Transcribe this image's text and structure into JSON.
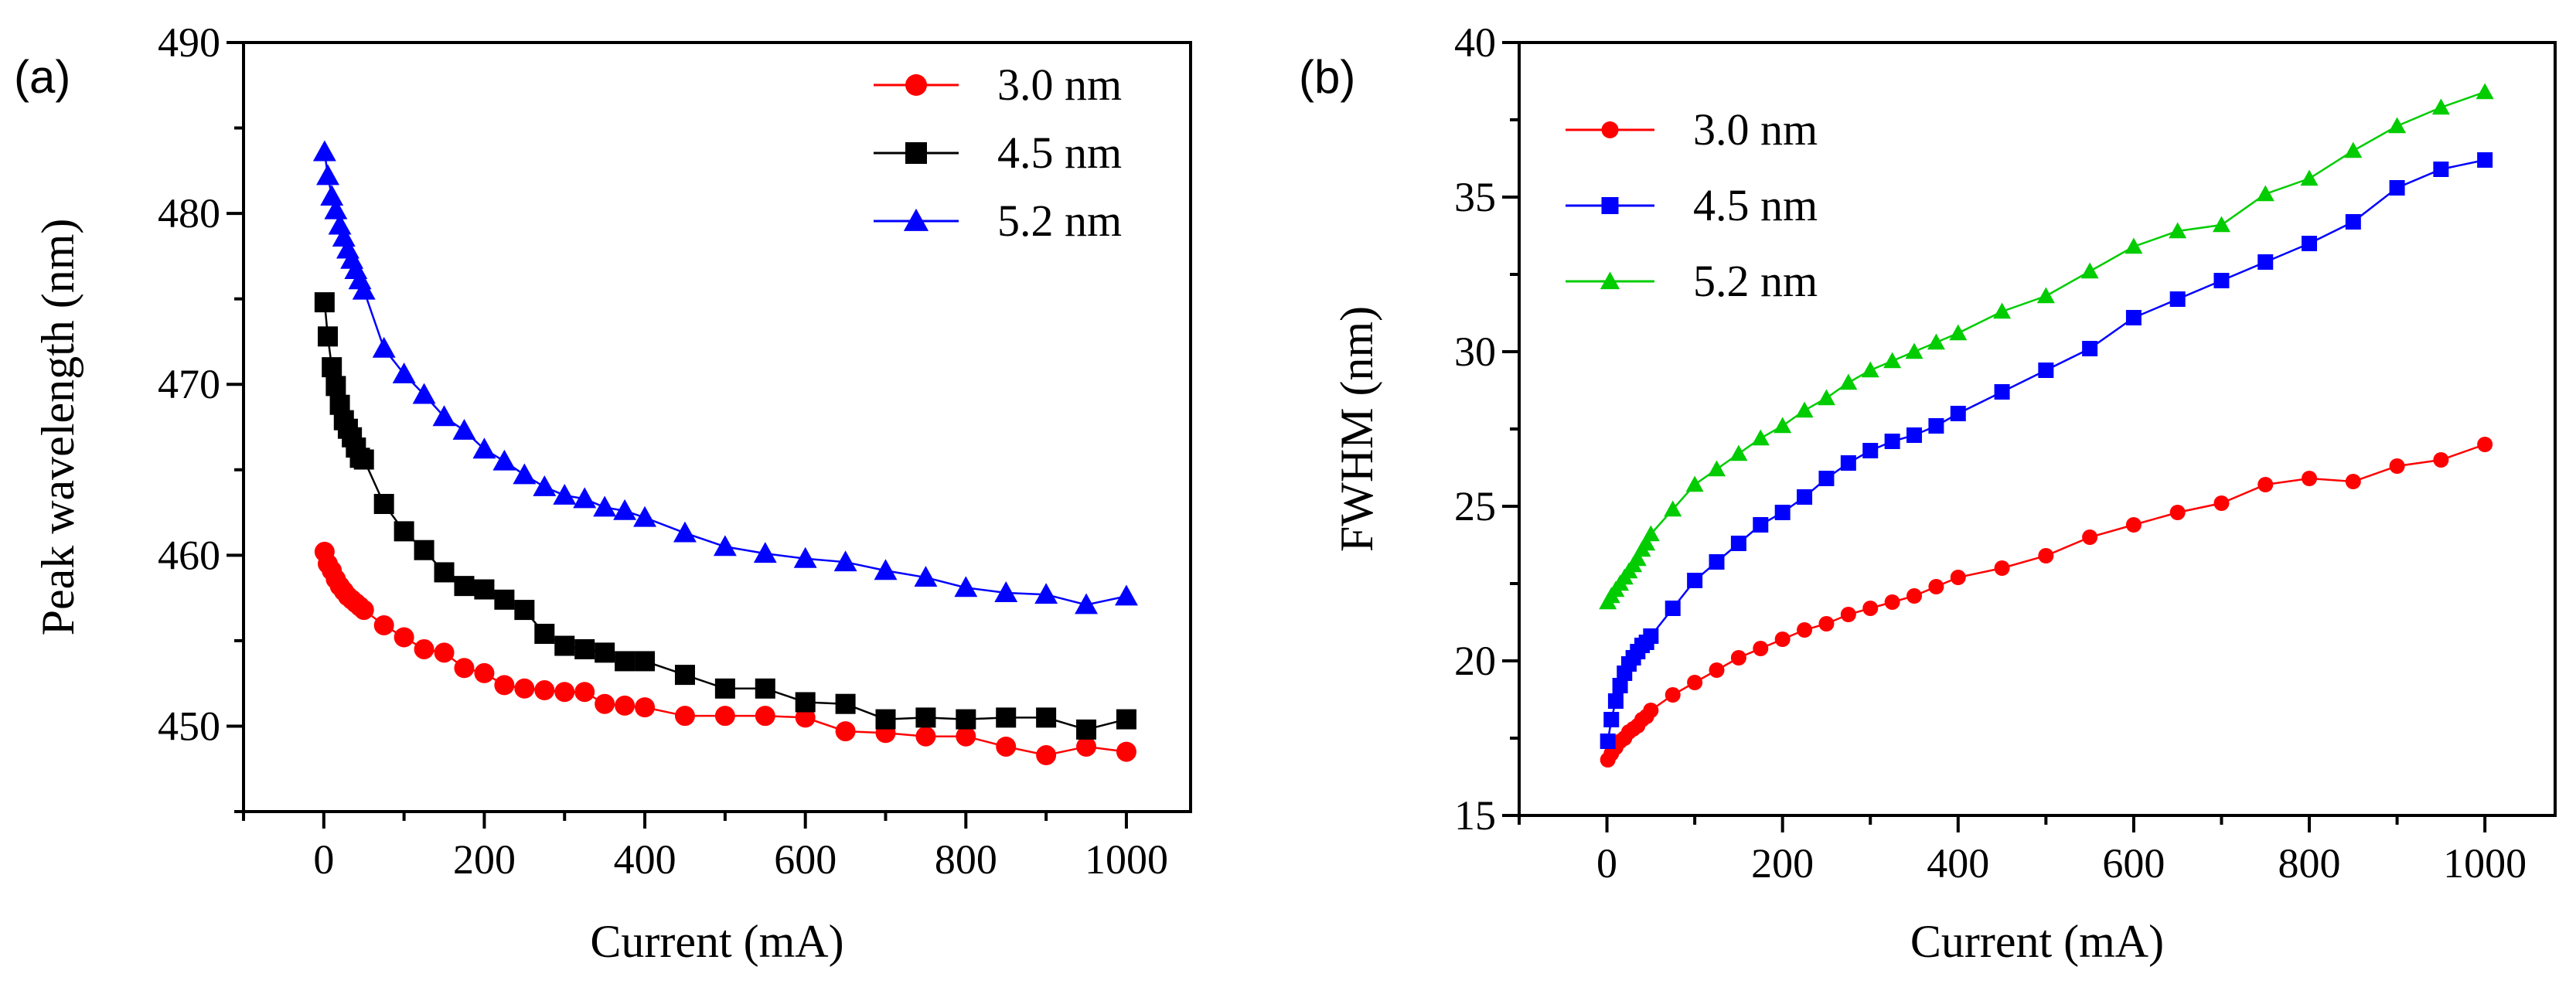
{
  "chart_data": [
    {
      "type": "scatter",
      "panel_label": "(a)",
      "xlabel": "Current (mA)",
      "ylabel": "Peak wavelength (nm)",
      "xlim": [
        -100,
        1080
      ],
      "ylim": [
        445,
        490
      ],
      "xticks": [
        0,
        200,
        400,
        600,
        800,
        1000
      ],
      "xtick_labels": [
        "0",
        "200",
        "400",
        "600",
        "800",
        "1000"
      ],
      "yticks": [
        450,
        460,
        470,
        480,
        490
      ],
      "ytick_labels": [
        "450",
        "460",
        "470",
        "480",
        "490"
      ],
      "legend_position": "top-right",
      "series": [
        {
          "name": "3.0 nm",
          "color": "#ff0000",
          "marker": "circle",
          "x": [
            1,
            5,
            10,
            15,
            20,
            25,
            30,
            35,
            40,
            45,
            50,
            75,
            100,
            125,
            150,
            175,
            200,
            225,
            250,
            275,
            300,
            325,
            350,
            375,
            400,
            450,
            500,
            550,
            600,
            650,
            700,
            750,
            800,
            850,
            900,
            950,
            1000
          ],
          "y": [
            460.2,
            459.5,
            459.1,
            458.6,
            458.2,
            457.9,
            457.6,
            457.4,
            457.2,
            457.0,
            456.8,
            455.9,
            455.2,
            454.5,
            454.3,
            453.4,
            453.1,
            452.4,
            452.2,
            452.1,
            452.0,
            452.0,
            451.3,
            451.2,
            451.1,
            450.6,
            450.6,
            450.6,
            450.5,
            449.7,
            449.6,
            449.4,
            449.4,
            448.8,
            448.3,
            448.8,
            448.5
          ]
        },
        {
          "name": "4.5 nm",
          "color": "#000000",
          "marker": "square",
          "x": [
            1,
            5,
            10,
            15,
            20,
            25,
            30,
            35,
            40,
            45,
            50,
            75,
            100,
            125,
            150,
            175,
            200,
            225,
            250,
            275,
            300,
            325,
            350,
            375,
            400,
            450,
            500,
            550,
            600,
            650,
            700,
            750,
            800,
            850,
            900,
            950,
            1000
          ],
          "y": [
            474.8,
            472.8,
            471.0,
            469.9,
            468.8,
            467.9,
            467.4,
            466.9,
            466.3,
            465.7,
            465.6,
            463.0,
            461.4,
            460.3,
            459.0,
            458.2,
            458.0,
            457.4,
            456.8,
            455.4,
            454.7,
            454.5,
            454.3,
            453.8,
            453.8,
            453.0,
            452.2,
            452.2,
            451.4,
            451.3,
            450.4,
            450.5,
            450.4,
            450.5,
            450.5,
            449.8,
            450.4
          ]
        },
        {
          "name": "5.2 nm",
          "color": "#0000ff",
          "marker": "triangle",
          "x": [
            1,
            5,
            10,
            15,
            20,
            25,
            30,
            35,
            40,
            45,
            50,
            75,
            100,
            125,
            150,
            175,
            200,
            225,
            250,
            275,
            300,
            325,
            350,
            375,
            400,
            450,
            500,
            550,
            600,
            650,
            700,
            750,
            800,
            850,
            900,
            950,
            1000
          ],
          "y": [
            483.6,
            482.2,
            481.0,
            480.2,
            479.3,
            478.6,
            477.9,
            477.3,
            476.7,
            476.1,
            475.5,
            472.1,
            470.6,
            469.4,
            468.1,
            467.3,
            466.2,
            465.5,
            464.7,
            464.0,
            463.5,
            463.3,
            462.8,
            462.6,
            462.2,
            461.3,
            460.5,
            460.1,
            459.8,
            459.6,
            459.1,
            458.7,
            458.1,
            457.8,
            457.7,
            457.1,
            457.6
          ]
        }
      ]
    },
    {
      "type": "line",
      "panel_label": "(b)",
      "xlabel": "Current (mA)",
      "ylabel": "FWHM (nm)",
      "xlim": [
        -100,
        1080
      ],
      "ylim": [
        15,
        40
      ],
      "xticks": [
        0,
        200,
        400,
        600,
        800,
        1000
      ],
      "xtick_labels": [
        "0",
        "200",
        "400",
        "600",
        "800",
        "1000"
      ],
      "yticks": [
        15,
        20,
        25,
        30,
        35,
        40
      ],
      "ytick_labels": [
        "15",
        "20",
        "25",
        "30",
        "35",
        "40"
      ],
      "legend_position": "top-left",
      "series": [
        {
          "name": "3.0 nm",
          "color": "#ff0000",
          "marker": "circle",
          "x": [
            1,
            5,
            10,
            15,
            20,
            25,
            30,
            35,
            40,
            45,
            50,
            75,
            100,
            125,
            150,
            175,
            200,
            225,
            250,
            275,
            300,
            325,
            350,
            375,
            400,
            450,
            500,
            550,
            600,
            650,
            700,
            750,
            800,
            850,
            900,
            950,
            1000
          ],
          "y": [
            16.8,
            17.0,
            17.2,
            17.4,
            17.5,
            17.7,
            17.8,
            17.9,
            18.1,
            18.2,
            18.4,
            18.9,
            19.3,
            19.7,
            20.1,
            20.4,
            20.7,
            21.0,
            21.2,
            21.5,
            21.7,
            21.9,
            22.1,
            22.4,
            22.7,
            23.0,
            23.4,
            24.0,
            24.4,
            24.8,
            25.1,
            25.7,
            25.9,
            25.8,
            26.3,
            26.5,
            27.0
          ]
        },
        {
          "name": "4.5 nm",
          "color": "#0000ff",
          "marker": "square",
          "x": [
            1,
            5,
            10,
            15,
            20,
            25,
            30,
            35,
            40,
            45,
            50,
            75,
            100,
            125,
            150,
            175,
            200,
            225,
            250,
            275,
            300,
            325,
            350,
            375,
            400,
            450,
            500,
            550,
            600,
            650,
            700,
            750,
            800,
            850,
            900,
            950,
            1000
          ],
          "y": [
            17.4,
            18.1,
            18.7,
            19.2,
            19.6,
            19.9,
            20.1,
            20.3,
            20.5,
            20.6,
            20.8,
            21.7,
            22.6,
            23.2,
            23.8,
            24.4,
            24.8,
            25.3,
            25.9,
            26.4,
            26.8,
            27.1,
            27.3,
            27.6,
            28.0,
            28.7,
            29.4,
            30.1,
            31.1,
            31.7,
            32.3,
            32.9,
            33.5,
            34.2,
            35.3,
            35.9,
            36.2
          ]
        },
        {
          "name": "5.2 nm",
          "color": "#00cc00",
          "marker": "triangle",
          "x": [
            1,
            5,
            10,
            15,
            20,
            25,
            30,
            35,
            40,
            45,
            50,
            75,
            100,
            125,
            150,
            175,
            200,
            225,
            250,
            275,
            300,
            325,
            350,
            375,
            400,
            450,
            500,
            550,
            600,
            650,
            700,
            750,
            800,
            850,
            900,
            950,
            1000
          ],
          "y": [
            21.9,
            22.1,
            22.3,
            22.5,
            22.7,
            22.9,
            23.1,
            23.3,
            23.6,
            23.8,
            24.1,
            24.9,
            25.7,
            26.2,
            26.7,
            27.2,
            27.6,
            28.1,
            28.5,
            29.0,
            29.4,
            29.7,
            30.0,
            30.3,
            30.6,
            31.3,
            31.8,
            32.6,
            33.4,
            33.9,
            34.1,
            35.1,
            35.6,
            36.5,
            37.3,
            37.9,
            38.4
          ]
        }
      ]
    }
  ]
}
